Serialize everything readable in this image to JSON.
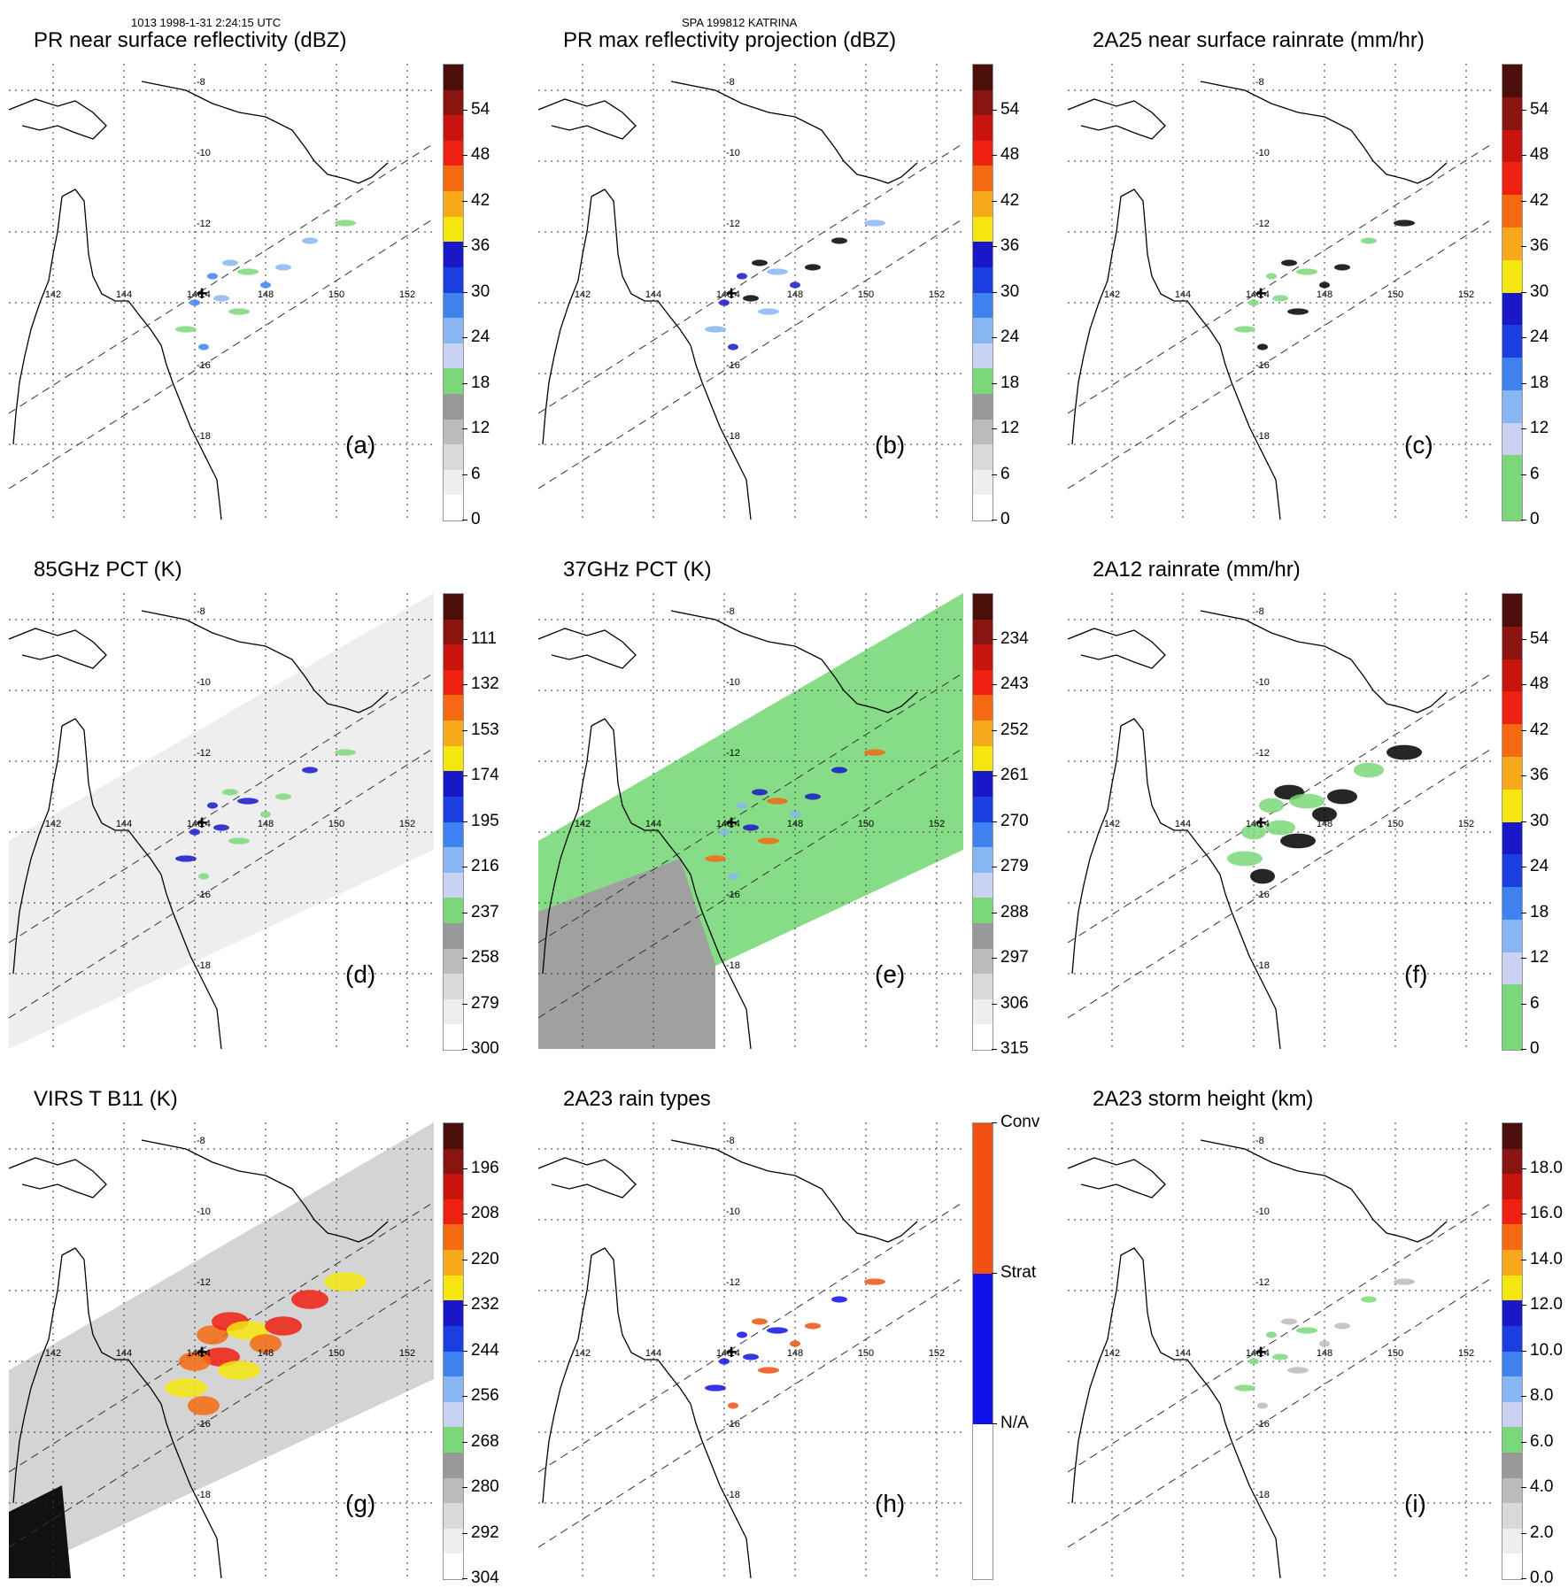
{
  "header": {
    "left": "1013 1998-1-31 2:24:15 UTC",
    "center": "SPA 199812 KATRINA"
  },
  "lon_labels": [
    "142",
    "144",
    "146",
    "148",
    "150",
    "152"
  ],
  "lat_labels": [
    "-8",
    "-10",
    "-12",
    "-14",
    "-16",
    "-18"
  ],
  "colors": {
    "reflectivity": [
      "#ffffff",
      "#eeeeee",
      "#d9d9d9",
      "#bbbbbb",
      "#999999",
      "#7ad87a",
      "#c9d2f3",
      "#88b6f2",
      "#3e82f0",
      "#1a3ee0",
      "#1818c8",
      "#f5e60f",
      "#f7a81d",
      "#f56a10",
      "#ee2010",
      "#c8140e",
      "#8a1410",
      "#4a0f0a"
    ],
    "rainrate": [
      "#7ad87a",
      "#7ad87a",
      "#c9d2f3",
      "#88b6f2",
      "#3e82f0",
      "#1a3ee0",
      "#1818c8",
      "#f5e60f",
      "#f7a81d",
      "#f56a10",
      "#ee2010",
      "#c8140e",
      "#8a1410",
      "#4a0f0a"
    ],
    "pct": [
      "#ffffff",
      "#eeeeee",
      "#d9d9d9",
      "#bbbbbb",
      "#999999",
      "#7ad87a",
      "#c9d2f3",
      "#88b6f2",
      "#3e82f0",
      "#1a3ee0",
      "#1818c8",
      "#f5e60f",
      "#f7a81d",
      "#f56a10",
      "#ee2010",
      "#c8140e",
      "#8a1410",
      "#4a0f0a"
    ],
    "raintype": [
      "#ffffff",
      "#1010e8",
      "#f05010"
    ]
  },
  "panels": [
    {
      "id": "a",
      "title": "PR near surface reflectivity (dBZ)",
      "label": "(a)",
      "colorbar": "reflectivity",
      "ticks": [
        "54",
        "48",
        "42",
        "36",
        "30",
        "24",
        "18",
        "12",
        "6",
        "0"
      ],
      "background": "none"
    },
    {
      "id": "b",
      "title": "PR max reflectivity projection (dBZ)",
      "label": "(b)",
      "colorbar": "reflectivity",
      "ticks": [
        "54",
        "48",
        "42",
        "36",
        "30",
        "24",
        "18",
        "12",
        "6",
        "0"
      ],
      "background": "none"
    },
    {
      "id": "c",
      "title": "2A25 near surface rainrate (mm/hr)",
      "label": "(c)",
      "colorbar": "rainrate",
      "ticks": [
        "54",
        "48",
        "42",
        "36",
        "30",
        "24",
        "18",
        "12",
        "6",
        "0"
      ],
      "background": "none"
    },
    {
      "id": "d",
      "title": "85GHz PCT (K)",
      "label": "(d)",
      "colorbar": "pct",
      "ticks": [
        "111",
        "132",
        "153",
        "174",
        "195",
        "216",
        "237",
        "258",
        "279",
        "300"
      ],
      "background": "lightgray"
    },
    {
      "id": "e",
      "title": "37GHz PCT (K)",
      "label": "(e)",
      "colorbar": "pct",
      "ticks": [
        "234",
        "243",
        "252",
        "261",
        "270",
        "279",
        "288",
        "297",
        "306",
        "315"
      ],
      "background": "green"
    },
    {
      "id": "f",
      "title": "2A12 rainrate (mm/hr)",
      "label": "(f)",
      "colorbar": "rainrate",
      "ticks": [
        "54",
        "48",
        "42",
        "36",
        "30",
        "24",
        "18",
        "12",
        "6",
        "0"
      ],
      "background": "none"
    },
    {
      "id": "g",
      "title": "VIRS T B11 (K)",
      "label": "(g)",
      "colorbar": "pct",
      "ticks": [
        "196",
        "208",
        "220",
        "232",
        "244",
        "256",
        "268",
        "280",
        "292",
        "304"
      ],
      "background": "gray"
    },
    {
      "id": "h",
      "title": "2A23 rain types",
      "label": "(h)",
      "colorbar": "raintype",
      "ticks": [
        "Conv",
        "Strat",
        "N/A"
      ],
      "background": "none"
    },
    {
      "id": "i",
      "title": "2A23 storm height (km)",
      "label": "(i)",
      "colorbar": "reflectivity",
      "ticks": [
        "18.0",
        "16.0",
        "14.0",
        "12.0",
        "10.0",
        "8.0",
        "6.0",
        "4.0",
        "2.0",
        "0.0"
      ],
      "background": "none"
    }
  ]
}
